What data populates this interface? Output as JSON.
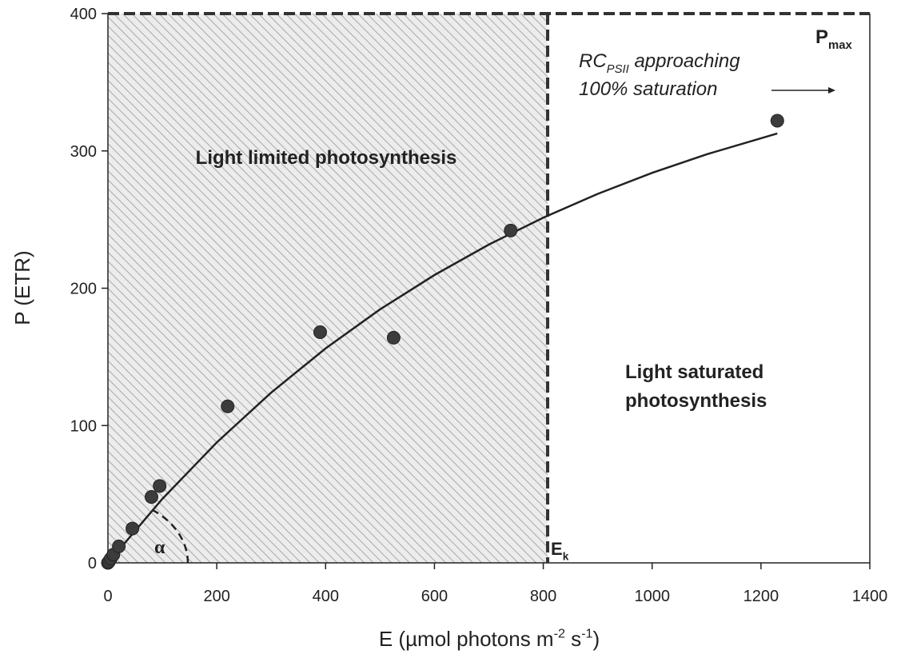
{
  "chart_data": {
    "type": "scatter",
    "ylabel": "P (ETR)",
    "xlabel": [
      {
        "text": "E (µmol photons m"
      },
      {
        "text": "-2",
        "sup": true
      },
      {
        "text": " s"
      },
      {
        "text": "-1",
        "sup": true
      },
      {
        "text": ")"
      }
    ],
    "x": [
      0,
      2,
      5,
      10,
      20,
      45,
      80,
      95,
      220,
      390,
      525,
      740,
      1230
    ],
    "values": [
      0,
      1,
      3,
      6,
      12,
      25,
      48,
      56,
      114,
      168,
      164,
      242,
      322
    ],
    "color": "#3c3c3c",
    "fit": {
      "x": [
        0,
        100,
        200,
        300,
        400,
        500,
        600,
        700,
        800,
        900,
        1000,
        1100,
        1230
      ],
      "values": [
        0,
        46.6,
        87.7,
        124.0,
        156.2,
        184.6,
        209.6,
        231.8,
        251.4,
        268.7,
        284.0,
        297.5,
        312.7
      ],
      "color": "#222"
    },
    "xlim": [
      0,
      1400
    ],
    "ylim": [
      0,
      400
    ],
    "xticks": [
      0,
      200,
      400,
      600,
      800,
      1000,
      1200,
      1400
    ],
    "yticks": [
      0,
      100,
      200,
      300,
      400
    ],
    "ek": 808,
    "pmax": 400,
    "annotations": {
      "limited": [
        {
          "text": "Light limited photosynthesis"
        }
      ],
      "saturated1": [
        {
          "text": "Light saturated"
        }
      ],
      "saturated2": [
        {
          "text": "photosynthesis"
        }
      ],
      "rc1": [
        {
          "text": "RC"
        },
        {
          "text": "PSII",
          "sub": true
        },
        {
          "text": " approaching"
        }
      ],
      "rc2": [
        {
          "text": "100% saturation"
        }
      ],
      "pmaxLabel": [
        {
          "text": "P"
        },
        {
          "text": "max",
          "sub": true
        }
      ],
      "ekLabel": [
        {
          "text": "E"
        },
        {
          "text": "k",
          "sub": true
        }
      ],
      "alpha": [
        {
          "text": "α"
        }
      ]
    }
  }
}
